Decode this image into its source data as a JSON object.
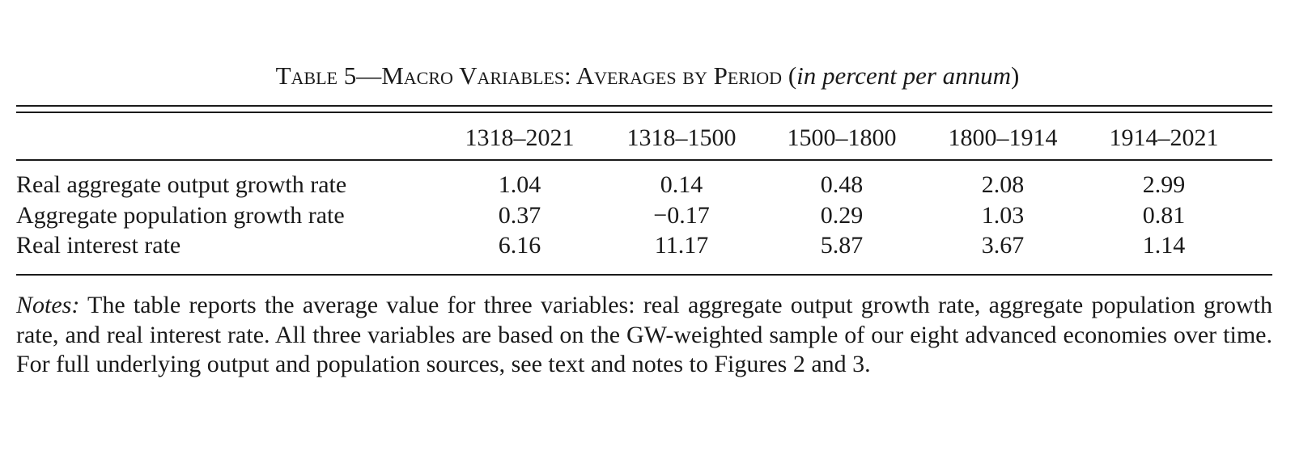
{
  "caption": {
    "table_label": "Table 5—Macro Variables: Averages by Period",
    "unit_open": "(",
    "unit": "in percent per annum",
    "unit_close": ")"
  },
  "table": {
    "columns": [
      "1318–2021",
      "1318–1500",
      "1500–1800",
      "1800–1914",
      "1914–2021"
    ],
    "rows": [
      {
        "label": "Real aggregate output growth rate",
        "values": [
          "1.04",
          "0.14",
          "0.48",
          "2.08",
          "2.99"
        ]
      },
      {
        "label": "Aggregate population growth rate",
        "values": [
          "0.37",
          "−0.17",
          "0.29",
          "1.03",
          "0.81"
        ]
      },
      {
        "label": "Real interest rate",
        "values": [
          "6.16",
          "11.17",
          "5.87",
          "3.67",
          "1.14"
        ]
      }
    ]
  },
  "notes": {
    "lead": "Notes:",
    "text": " The table reports the average value for three variables: real aggregate output growth rate, aggregate pop­ulation growth rate, and real interest rate. All three variables are based on the GW-weighted sample of our eight advanced economies over time. For full underlying output and population sources, see text and notes to Figures 2 and 3."
  }
}
